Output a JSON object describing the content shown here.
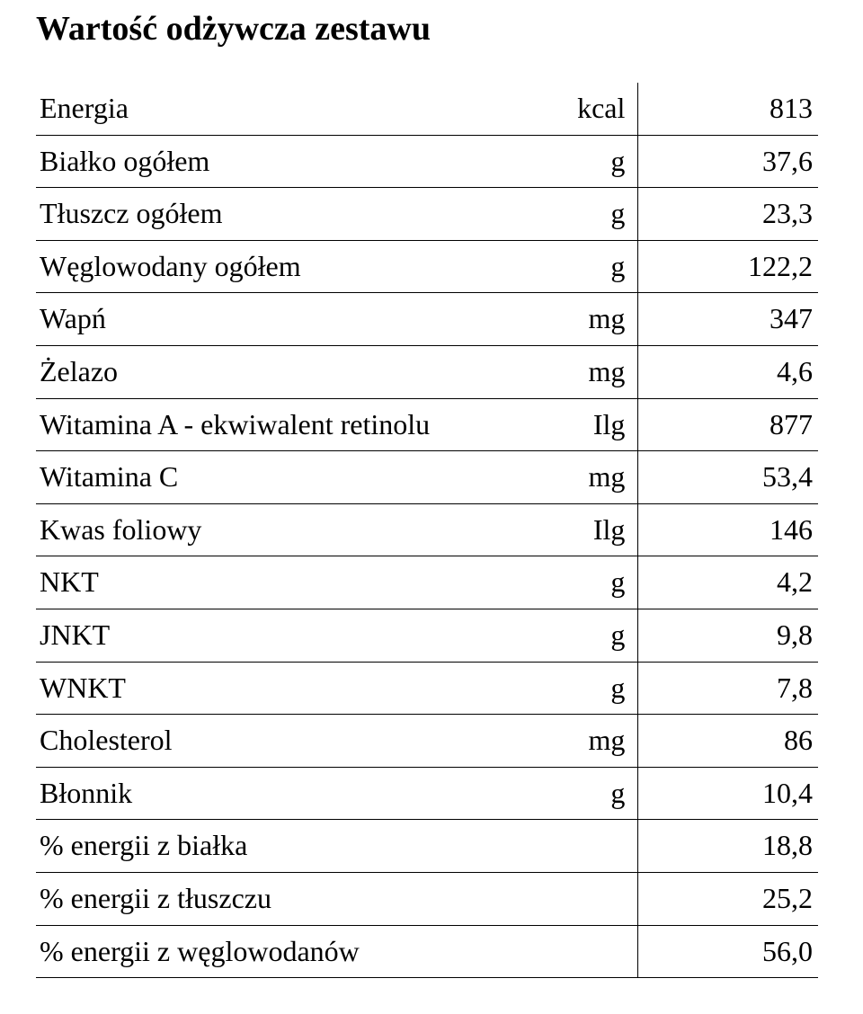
{
  "title": "Wartość odżywcza zestawu",
  "colors": {
    "text": "#000000",
    "background": "#ffffff",
    "rule": "#000000"
  },
  "typography": {
    "title_fontsize_pt": 28,
    "title_weight": "bold",
    "body_fontsize_pt": 24,
    "font_family": "Times New Roman"
  },
  "table": {
    "type": "table",
    "columns": [
      "name",
      "unit",
      "value"
    ],
    "column_align": [
      "left",
      "right",
      "right"
    ],
    "column_widths_pct": [
      62,
      15,
      23
    ],
    "row_border_color": "#000000",
    "vertical_rule_after_col": 1,
    "rows": [
      {
        "name": "Energia",
        "unit": "kcal",
        "value": "813"
      },
      {
        "name": "Białko ogółem",
        "unit": "g",
        "value": "37,6"
      },
      {
        "name": "Tłuszcz ogółem",
        "unit": "g",
        "value": "23,3"
      },
      {
        "name": "Węglowodany ogółem",
        "unit": "g",
        "value": "122,2"
      },
      {
        "name": "Wapń",
        "unit": "mg",
        "value": "347"
      },
      {
        "name": "Żelazo",
        "unit": "mg",
        "value": "4,6"
      },
      {
        "name": "Witamina A - ekwiwalent retinolu",
        "unit": "Ilg",
        "value": "877"
      },
      {
        "name": "Witamina C",
        "unit": "mg",
        "value": "53,4"
      },
      {
        "name": "Kwas foliowy",
        "unit": "Ilg",
        "value": "146"
      },
      {
        "name": "NKT",
        "unit": "g",
        "value": "4,2"
      },
      {
        "name": "JNKT",
        "unit": "g",
        "value": "9,8"
      },
      {
        "name": "WNKT",
        "unit": "g",
        "value": "7,8"
      },
      {
        "name": "Cholesterol",
        "unit": "mg",
        "value": "86"
      },
      {
        "name": "Błonnik",
        "unit": "g",
        "value": "10,4"
      },
      {
        "name": "% energii z białka",
        "unit": "",
        "value": "18,8"
      },
      {
        "name": "% energii z tłuszczu",
        "unit": "",
        "value": "25,2"
      },
      {
        "name": "% energii z węglowodanów",
        "unit": "",
        "value": "56,0"
      }
    ]
  }
}
